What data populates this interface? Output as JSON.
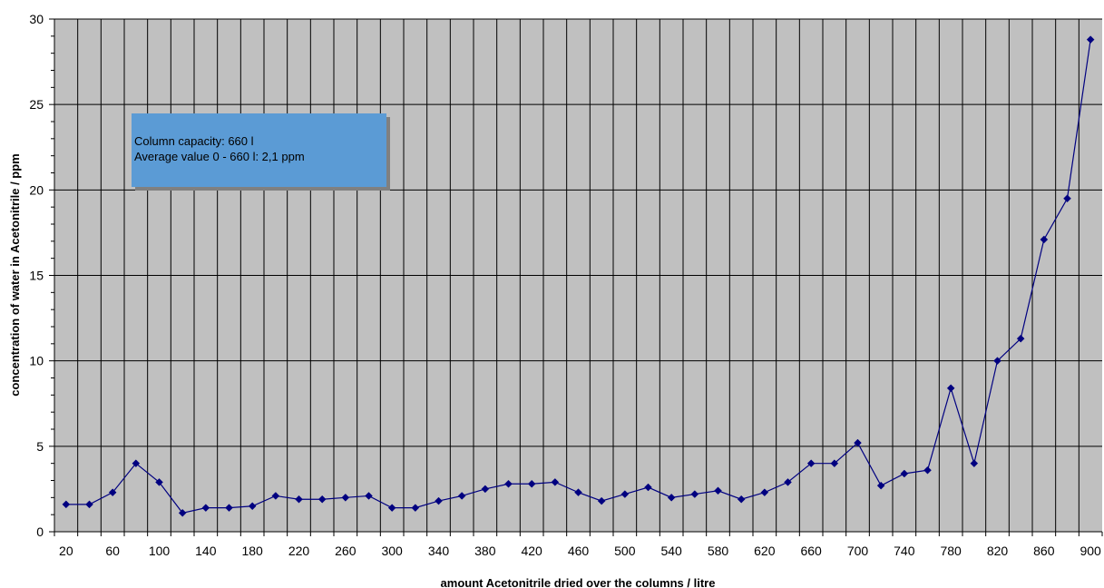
{
  "chart_data": {
    "type": "line",
    "title": "",
    "xlabel": "amount Acetonitrile dried over the columns / litre",
    "ylabel": "concentration of water in Acetonitrile / ppm",
    "xlim": [
      10,
      910
    ],
    "ylim": [
      0,
      30
    ],
    "x_ticks": [
      20,
      60,
      100,
      140,
      180,
      220,
      260,
      300,
      340,
      380,
      420,
      460,
      500,
      540,
      580,
      620,
      660,
      700,
      740,
      780,
      820,
      860,
      900
    ],
    "y_ticks": [
      0,
      5,
      10,
      15,
      20,
      25,
      30
    ],
    "grid": true,
    "legend": "none",
    "colors": {
      "plot_background": "#c0c0c0",
      "grid": "#000000",
      "series": "#000080",
      "annotation_fill": "#5b9bd5",
      "annotation_shadow": "#808080"
    },
    "annotation_lines": [
      "Column capacity: 660 l",
      "Average value 0 - 660 l: 2,1 ppm"
    ],
    "series": [
      {
        "x": [
          20,
          40,
          60,
          80,
          100,
          120,
          140,
          160,
          180,
          200,
          220,
          240,
          260,
          280,
          300,
          320,
          340,
          360,
          380,
          400,
          420,
          440,
          460,
          480,
          500,
          520,
          540,
          560,
          580,
          600,
          620,
          640,
          660,
          680,
          700,
          720,
          740,
          760,
          780,
          800,
          820,
          840,
          860,
          880,
          900
        ],
        "values": [
          1.6,
          1.6,
          2.3,
          4.0,
          2.9,
          1.1,
          1.4,
          1.4,
          1.5,
          2.1,
          1.9,
          1.9,
          2.0,
          2.1,
          1.4,
          1.4,
          1.8,
          2.1,
          2.5,
          2.8,
          2.8,
          2.9,
          2.3,
          1.8,
          2.2,
          2.6,
          2.0,
          2.2,
          2.4,
          1.9,
          2.3,
          2.9,
          4.0,
          4.0,
          5.2,
          2.7,
          3.4,
          3.6,
          8.4,
          4.0,
          10.0,
          11.3,
          17.1,
          19.5,
          28.8
        ]
      }
    ]
  }
}
